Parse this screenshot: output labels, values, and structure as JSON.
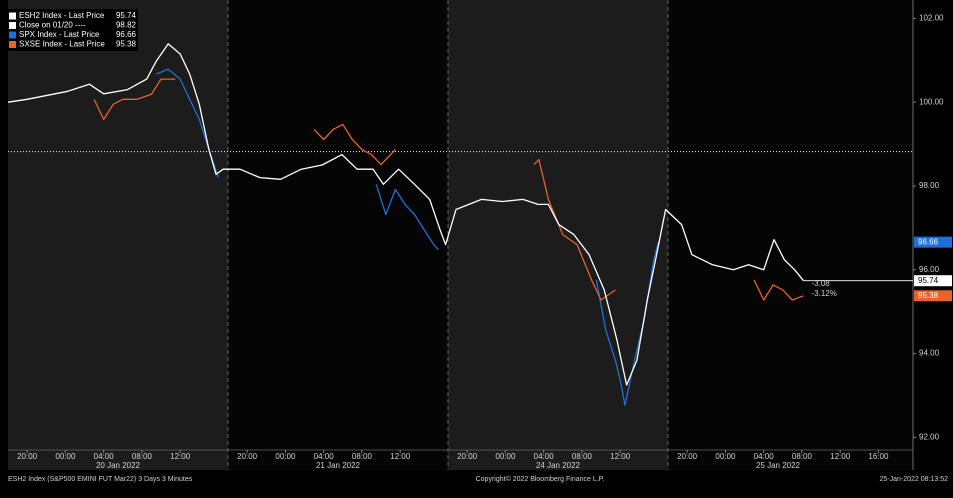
{
  "chart_data": {
    "type": "line",
    "sessions": [
      "20 Jan 2022",
      "21 Jan 2022",
      "24 Jan 2022",
      "25 Jan 2022"
    ],
    "ylim": [
      91.7,
      102.2
    ],
    "yticks": [
      {
        "value": 92,
        "label": "92.00"
      },
      {
        "value": 94,
        "label": "94.00"
      },
      {
        "value": 96,
        "label": "96.00"
      },
      {
        "value": 98,
        "label": "98.00"
      },
      {
        "value": 100,
        "label": "100.00"
      },
      {
        "value": 102,
        "label": "102.00"
      }
    ],
    "xticks": [
      {
        "value": "2022-01-19T20:00",
        "label": "20:00"
      },
      {
        "value": "2022-01-20T00:00",
        "label": "00:00"
      },
      {
        "value": "2022-01-20T04:00",
        "label": "04:00"
      },
      {
        "value": "2022-01-20T08:00",
        "label": "08:00"
      },
      {
        "value": "2022-01-20T12:00",
        "label": "12:00"
      },
      {
        "value": "2022-01-20T20:00",
        "label": "20:00"
      },
      {
        "value": "2022-01-21T00:00",
        "label": "00:00"
      },
      {
        "value": "2022-01-21T04:00",
        "label": "04:00"
      },
      {
        "value": "2022-01-21T08:00",
        "label": "08:00"
      },
      {
        "value": "2022-01-21T12:00",
        "label": "12:00"
      },
      {
        "value": "2022-01-23T20:00",
        "label": "20:00"
      },
      {
        "value": "2022-01-24T00:00",
        "label": "00:00"
      },
      {
        "value": "2022-01-24T04:00",
        "label": "04:00"
      },
      {
        "value": "2022-01-24T08:00",
        "label": "08:00"
      },
      {
        "value": "2022-01-24T12:00",
        "label": "12:00"
      },
      {
        "value": "2022-01-24T20:00",
        "label": "20:00"
      },
      {
        "value": "2022-01-25T00:00",
        "label": "00:00"
      },
      {
        "value": "2022-01-25T04:00",
        "label": "04:00"
      },
      {
        "value": "2022-01-25T08:00",
        "label": "08:00"
      },
      {
        "value": "2022-01-25T12:00",
        "label": "12:00"
      },
      {
        "value": "2022-01-25T16:00",
        "label": "16:00"
      }
    ],
    "close_line": {
      "name": "Close on 01/20 ----",
      "value": 98.82,
      "color": "#ffffff"
    },
    "series": [
      {
        "name": "ESH2 Index - Last Price",
        "color": "#ffffff",
        "last": 95.74,
        "x": [
          "2022-01-19T18:00",
          "2022-01-19T20:00",
          "2022-01-20T00:15",
          "2022-01-20T02:30",
          "2022-01-20T04:00",
          "2022-01-20T06:30",
          "2022-01-20T08:30",
          "2022-01-20T09:30",
          "2022-01-20T10:45",
          "2022-01-20T12:00",
          "2022-01-20T13:00",
          "2022-01-20T14:00",
          "2022-01-20T15:00",
          "2022-01-20T15:45",
          "2022-01-20T16:30",
          "2022-01-20T19:15",
          "2022-01-20T21:20",
          "2022-01-20T23:30",
          "2022-01-21T01:40",
          "2022-01-21T03:50",
          "2022-01-21T05:55",
          "2022-01-21T07:30",
          "2022-01-21T09:10",
          "2022-01-21T10:15",
          "2022-01-21T11:50",
          "2022-01-21T13:30",
          "2022-01-21T15:05",
          "2022-01-21T16:10",
          "2022-01-21T16:45",
          "2022-01-23T18:50",
          "2022-01-23T21:30",
          "2022-01-23T23:40",
          "2022-01-24T01:50",
          "2022-01-24T03:25",
          "2022-01-24T04:30",
          "2022-01-24T05:35",
          "2022-01-24T07:10",
          "2022-01-24T08:45",
          "2022-01-24T10:20",
          "2022-01-24T11:40",
          "2022-01-24T12:40",
          "2022-01-24T13:45",
          "2022-01-24T14:50",
          "2022-01-24T15:55",
          "2022-01-24T16:45",
          "2022-01-24T19:25",
          "2022-01-24T20:30",
          "2022-01-24T22:40",
          "2022-01-25T00:50",
          "2022-01-25T02:25",
          "2022-01-25T04:00",
          "2022-01-25T05:05",
          "2022-01-25T06:10",
          "2022-01-25T07:15",
          "2022-01-25T08:10"
        ],
        "values": [
          100.0,
          100.07,
          100.26,
          100.43,
          100.2,
          100.3,
          100.55,
          100.98,
          101.39,
          101.15,
          100.67,
          99.95,
          98.87,
          98.28,
          98.4,
          98.4,
          98.2,
          98.16,
          98.4,
          98.5,
          98.75,
          98.4,
          98.4,
          98.04,
          98.4,
          98.04,
          97.68,
          96.96,
          96.6,
          97.44,
          97.68,
          97.63,
          97.68,
          97.56,
          97.56,
          97.08,
          96.84,
          96.36,
          95.52,
          94.32,
          93.25,
          93.84,
          95.28,
          96.48,
          97.44,
          97.08,
          96.36,
          96.12,
          96.0,
          96.12,
          96.0,
          96.72,
          96.24,
          96.0,
          95.74
        ]
      },
      {
        "name": "SPX Index - Last Price",
        "color": "#1e6fd9",
        "last": 96.66,
        "x": [
          "2022-01-20T09:30",
          "2022-01-20T10:45",
          "2022-01-20T12:00",
          "2022-01-20T13:00",
          "2022-01-20T14:00",
          "2022-01-20T15:00",
          "2022-01-20T16:00",
          "2022-01-20T17:00",
          "2022-01-21T09:30",
          "2022-01-21T10:30",
          "2022-01-21T11:30",
          "2022-01-21T12:30",
          "2022-01-21T13:30",
          "2022-01-21T14:30",
          "2022-01-21T15:30",
          "2022-01-21T16:00",
          "2022-01-21T17:00",
          "2022-01-24T09:30",
          "2022-01-24T10:30",
          "2022-01-24T11:30",
          "2022-01-24T12:00",
          "2022-01-24T12:30",
          "2022-01-24T13:30",
          "2022-01-24T14:30",
          "2022-01-24T15:30",
          "2022-01-24T16:00"
        ],
        "values": [
          100.67,
          100.79,
          100.55,
          100.07,
          99.59,
          98.87,
          98.2,
          null,
          98.04,
          97.32,
          97.92,
          97.56,
          97.32,
          96.96,
          96.6,
          96.48,
          null,
          95.76,
          94.56,
          93.84,
          93.37,
          92.77,
          93.84,
          94.8,
          96.24,
          96.66
        ]
      },
      {
        "name": "SXSE Index - Last Price",
        "color": "#e8622c",
        "last": 95.38,
        "x": [
          "2022-01-20T03:00",
          "2022-01-20T04:00",
          "2022-01-20T05:00",
          "2022-01-20T06:00",
          "2022-01-20T07:30",
          "2022-01-20T09:00",
          "2022-01-20T10:00",
          "2022-01-20T11:30",
          "2022-01-20T17:00",
          "2022-01-21T03:00",
          "2022-01-21T04:00",
          "2022-01-21T05:00",
          "2022-01-21T06:00",
          "2022-01-21T07:00",
          "2022-01-21T08:00",
          "2022-01-21T09:00",
          "2022-01-21T10:00",
          "2022-01-21T11:30",
          "2022-01-21T17:00",
          "2022-01-24T03:00",
          "2022-01-24T03:30",
          "2022-01-24T04:30",
          "2022-01-24T06:00",
          "2022-01-24T07:30",
          "2022-01-24T09:00",
          "2022-01-24T10:00",
          "2022-01-24T11:30",
          "2022-01-24T17:00",
          "2022-01-25T03:00",
          "2022-01-25T04:00",
          "2022-01-25T05:00",
          "2022-01-25T06:00",
          "2022-01-25T07:00",
          "2022-01-25T08:10"
        ],
        "values": [
          100.07,
          99.59,
          99.95,
          100.07,
          100.07,
          100.19,
          100.55,
          100.55,
          null,
          99.35,
          99.11,
          99.35,
          99.47,
          99.11,
          98.87,
          98.75,
          98.51,
          98.87,
          null,
          98.51,
          98.63,
          97.68,
          96.84,
          96.6,
          95.76,
          95.28,
          95.52,
          null,
          95.76,
          95.28,
          95.64,
          95.52,
          95.28,
          95.38
        ]
      }
    ],
    "annotations": [
      "-3.08",
      "-3.12%"
    ],
    "footer": {
      "left": "ESH2 Index (S&P500 EMINI FUT  Mar22) 3 Days 3 Minutes",
      "center": "Copyright© 2022 Bloomberg Finance L.P.",
      "right": "25-Jan-2022 08:13:52"
    }
  }
}
